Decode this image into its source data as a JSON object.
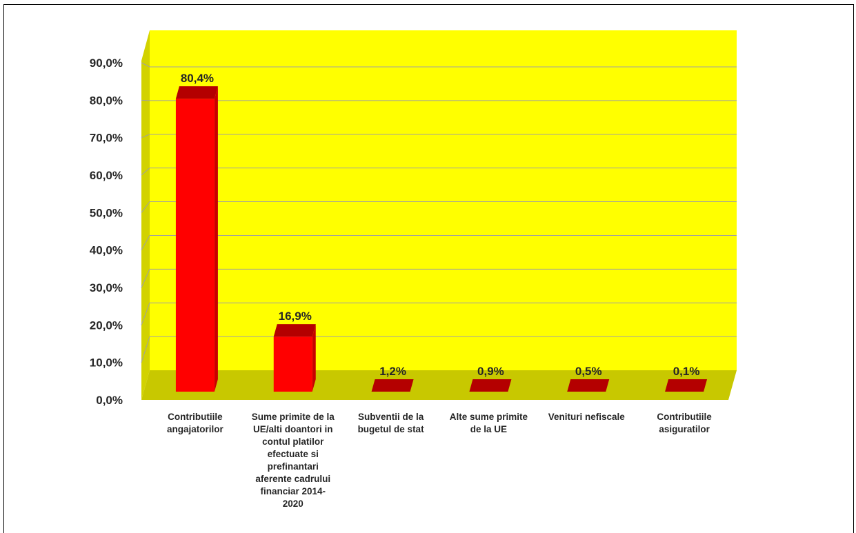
{
  "chart_data": {
    "type": "bar",
    "title": "",
    "xlabel": "",
    "ylabel": "",
    "ylim": [
      0,
      90
    ],
    "y_ticks": [
      "0,0%",
      "10,0%",
      "20,0%",
      "30,0%",
      "40,0%",
      "50,0%",
      "60,0%",
      "70,0%",
      "80,0%",
      "90,0%"
    ],
    "grid": true,
    "legend": "none",
    "three_d": true,
    "categories": [
      [
        "Contributiile",
        "angajatorilor"
      ],
      [
        "Sume primite de la",
        "UE/alti doantori in",
        "contul platilor",
        "efectuate si",
        "prefinantari",
        "aferente cadrului",
        "financiar 2014-",
        "2020"
      ],
      [
        "Subventii de la",
        "bugetul de stat"
      ],
      [
        "Alte sume primite",
        "de la UE"
      ],
      [
        "Venituri nefiscale"
      ],
      [
        "Contributiile",
        "asiguratilor"
      ]
    ],
    "values": [
      80.4,
      16.9,
      1.2,
      0.9,
      0.5,
      0.1
    ],
    "value_labels": [
      "80,4%",
      "16,9%",
      "1,2%",
      "0,9%",
      "0,5%",
      "0,1%"
    ],
    "colors": {
      "wall": "#ffff00",
      "floor": "#c8c800",
      "side_wall": "#d2d200",
      "bar_front": "#ff0000",
      "bar_top": "#b40000",
      "bar_side": "#c80000",
      "gridline": "#a0a0a0"
    }
  }
}
